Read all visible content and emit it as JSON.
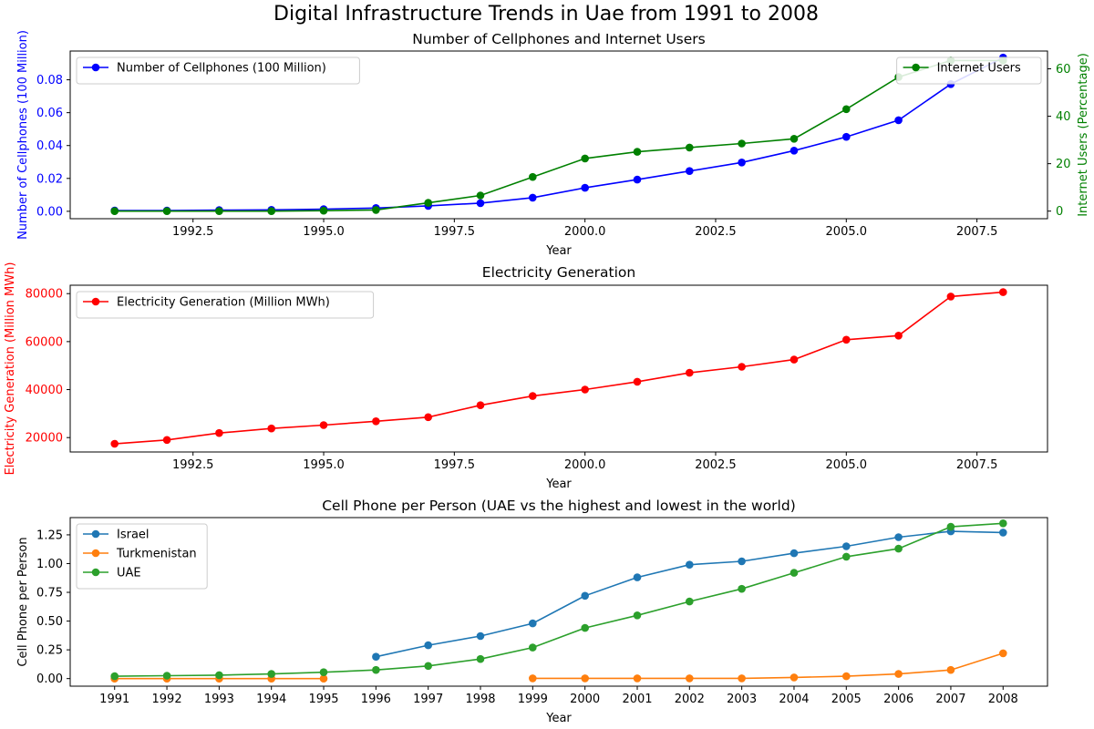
{
  "figure": {
    "title": "Digital Infrastructure Trends in Uae from 1991 to 2008"
  },
  "chart_data": [
    {
      "type": "line",
      "title": "Number of Cellphones and Internet Users",
      "xlabel": "Year",
      "ylabel": "Number of Cellphones (100 Million)",
      "ylabel_right": "Internet Users (Percentage)",
      "ylabel_color": "#0000ff",
      "ylabel_right_color": "#008000",
      "xlim": [
        1990.15,
        2008.85
      ],
      "ylim": [
        -0.0045,
        0.0975
      ],
      "ylim_right": [
        -3.2,
        67.5
      ],
      "xticks": [
        1992.5,
        1995.0,
        1997.5,
        2000.0,
        2002.5,
        2005.0,
        2007.5
      ],
      "xtick_labels": [
        "1992.5",
        "1995.0",
        "1997.5",
        "2000.0",
        "2002.5",
        "2005.0",
        "2007.5"
      ],
      "yticks": [
        0.0,
        0.02,
        0.04,
        0.06,
        0.08
      ],
      "ytick_labels": [
        "0.00",
        "0.02",
        "0.04",
        "0.06",
        "0.08"
      ],
      "yticks_right": [
        0,
        20,
        40,
        60
      ],
      "ytick_labels_right": [
        "0",
        "20",
        "40",
        "60"
      ],
      "grid": false,
      "series": [
        {
          "name": "Number of Cellphones (100 Million)",
          "color": "#0000ff",
          "axis": "left",
          "legend_position": "upper-left",
          "x": [
            1991,
            1992,
            1993,
            1994,
            1995,
            1996,
            1997,
            1998,
            1999,
            2000,
            2001,
            2002,
            2003,
            2004,
            2005,
            2006,
            2007,
            2008
          ],
          "values": [
            0.0005,
            0.0005,
            0.0007,
            0.0009,
            0.0013,
            0.002,
            0.0033,
            0.005,
            0.0083,
            0.0143,
            0.0193,
            0.0245,
            0.0297,
            0.0369,
            0.0453,
            0.0554,
            0.0774,
            0.0935
          ]
        },
        {
          "name": "Internet Users",
          "color": "#008000",
          "axis": "right",
          "legend_position": "upper-right",
          "x": [
            1991,
            1992,
            1993,
            1994,
            1995,
            1996,
            1997,
            1998,
            1999,
            2000,
            2001,
            2002,
            2003,
            2004,
            2005,
            2006,
            2007,
            2008
          ],
          "values": [
            0,
            0,
            0,
            0,
            0.2,
            0.5,
            3.5,
            6.6,
            14.4,
            22.2,
            25,
            26.8,
            28.5,
            30.5,
            43,
            56.5,
            63.5,
            63.5
          ]
        }
      ]
    },
    {
      "type": "line",
      "title": "Electricity Generation",
      "xlabel": "Year",
      "ylabel": "Electricity Generation (Million MWh)",
      "ylabel_color": "#ff0000",
      "xlim": [
        1990.15,
        2008.85
      ],
      "ylim": [
        14000,
        83500
      ],
      "xticks": [
        1992.5,
        1995.0,
        1997.5,
        2000.0,
        2002.5,
        2005.0,
        2007.5
      ],
      "xtick_labels": [
        "1992.5",
        "1995.0",
        "1997.5",
        "2000.0",
        "2002.5",
        "2005.0",
        "2007.5"
      ],
      "yticks": [
        20000,
        40000,
        60000,
        80000
      ],
      "ytick_labels": [
        "20000",
        "40000",
        "60000",
        "80000"
      ],
      "grid": false,
      "legend_position": "upper-left",
      "series": [
        {
          "name": "Electricity Generation (Million MWh)",
          "color": "#ff0000",
          "x": [
            1991,
            1992,
            1993,
            1994,
            1995,
            1996,
            1997,
            1998,
            1999,
            2000,
            2001,
            2002,
            2003,
            2004,
            2005,
            2006,
            2007,
            2008
          ],
          "values": [
            17400,
            19000,
            21900,
            23800,
            25200,
            26800,
            28500,
            33500,
            37300,
            40000,
            43300,
            47000,
            49500,
            52500,
            60800,
            62500,
            78800,
            80600
          ]
        }
      ]
    },
    {
      "type": "line",
      "title": "Cell Phone per Person (UAE vs the highest and lowest in the world)",
      "xlabel": "Year",
      "ylabel": "Cell Phone per Person",
      "xlim": [
        1990.15,
        2008.85
      ],
      "ylim": [
        -0.066,
        1.4
      ],
      "xticks": [
        1991,
        1992,
        1993,
        1994,
        1995,
        1996,
        1997,
        1998,
        1999,
        2000,
        2001,
        2002,
        2003,
        2004,
        2005,
        2006,
        2007,
        2008
      ],
      "xtick_labels": [
        "1991",
        "1992",
        "1993",
        "1994",
        "1995",
        "1996",
        "1997",
        "1998",
        "1999",
        "2000",
        "2001",
        "2002",
        "2003",
        "2004",
        "2005",
        "2006",
        "2007",
        "2008"
      ],
      "yticks": [
        0.0,
        0.25,
        0.5,
        0.75,
        1.0,
        1.25
      ],
      "ytick_labels": [
        "0.00",
        "0.25",
        "0.50",
        "0.75",
        "1.00",
        "1.25"
      ],
      "grid": false,
      "legend_position": "upper-left",
      "series": [
        {
          "name": "Israel",
          "color": "#1f77b4",
          "x": [
            1996,
            1997,
            1998,
            1999,
            2000,
            2001,
            2002,
            2003,
            2004,
            2005,
            2006,
            2007,
            2008
          ],
          "values": [
            0.19,
            0.29,
            0.37,
            0.48,
            0.72,
            0.88,
            0.99,
            1.02,
            1.09,
            1.15,
            1.23,
            1.28,
            1.27
          ]
        },
        {
          "name": "Turkmenistan",
          "color": "#ff7f0e",
          "x": [
            1991,
            1992,
            1993,
            1994,
            1995,
            null,
            null,
            null,
            1999,
            2000,
            2001,
            2002,
            2003,
            2004,
            2005,
            2006,
            2007,
            2008
          ],
          "values": [
            0.0,
            0.0,
            0.0,
            0.0,
            0.0,
            null,
            null,
            null,
            0.002,
            0.002,
            0.002,
            0.002,
            0.002,
            0.01,
            0.02,
            0.04,
            0.075,
            0.22
          ]
        },
        {
          "name": "UAE",
          "color": "#2ca02c",
          "x": [
            1991,
            1992,
            1993,
            1994,
            1995,
            1996,
            1997,
            1998,
            1999,
            2000,
            2001,
            2002,
            2003,
            2004,
            2005,
            2006,
            2007,
            2008
          ],
          "values": [
            0.02,
            0.025,
            0.03,
            0.04,
            0.055,
            0.075,
            0.11,
            0.17,
            0.27,
            0.44,
            0.55,
            0.67,
            0.78,
            0.92,
            1.06,
            1.13,
            1.32,
            1.35
          ]
        }
      ]
    }
  ]
}
